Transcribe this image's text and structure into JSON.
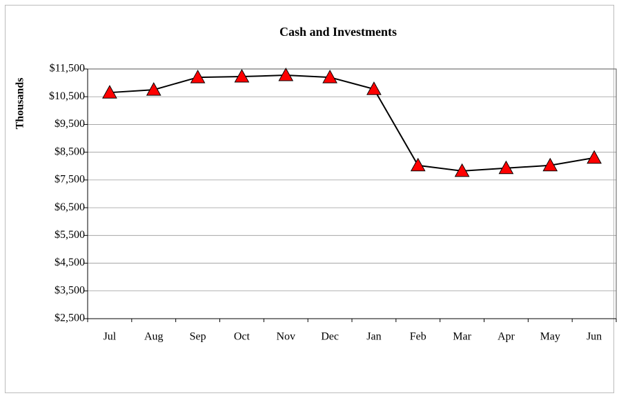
{
  "chart_data": {
    "type": "line",
    "title": "Cash and Investments",
    "y_label": "Thousands",
    "categories": [
      "Jul",
      "Aug",
      "Sep",
      "Oct",
      "Nov",
      "Dec",
      "Jan",
      "Feb",
      "Mar",
      "Apr",
      "May",
      "Jun"
    ],
    "series": [
      {
        "name": "Cash and Investments",
        "color": "#000000",
        "marker_color": "#ff0000",
        "values": [
          10650,
          10750,
          11200,
          11225,
          11275,
          11200,
          10775,
          8025,
          7825,
          7925,
          8025,
          8300
        ]
      }
    ],
    "ylim": [
      2500,
      11500
    ],
    "yticks": [
      {
        "value": 2500,
        "label": "$2,500"
      },
      {
        "value": 3500,
        "label": "$3,500"
      },
      {
        "value": 4500,
        "label": "$4,500"
      },
      {
        "value": 5500,
        "label": "$5,500"
      },
      {
        "value": 6500,
        "label": "$6,500"
      },
      {
        "value": 7500,
        "label": "$7,500"
      },
      {
        "value": 8500,
        "label": "$8,500"
      },
      {
        "value": 9500,
        "label": "$9,500"
      },
      {
        "value": 10500,
        "label": "$10,500"
      },
      {
        "value": 11500,
        "label": "$11,500"
      }
    ],
    "grid": true,
    "legend": false
  }
}
